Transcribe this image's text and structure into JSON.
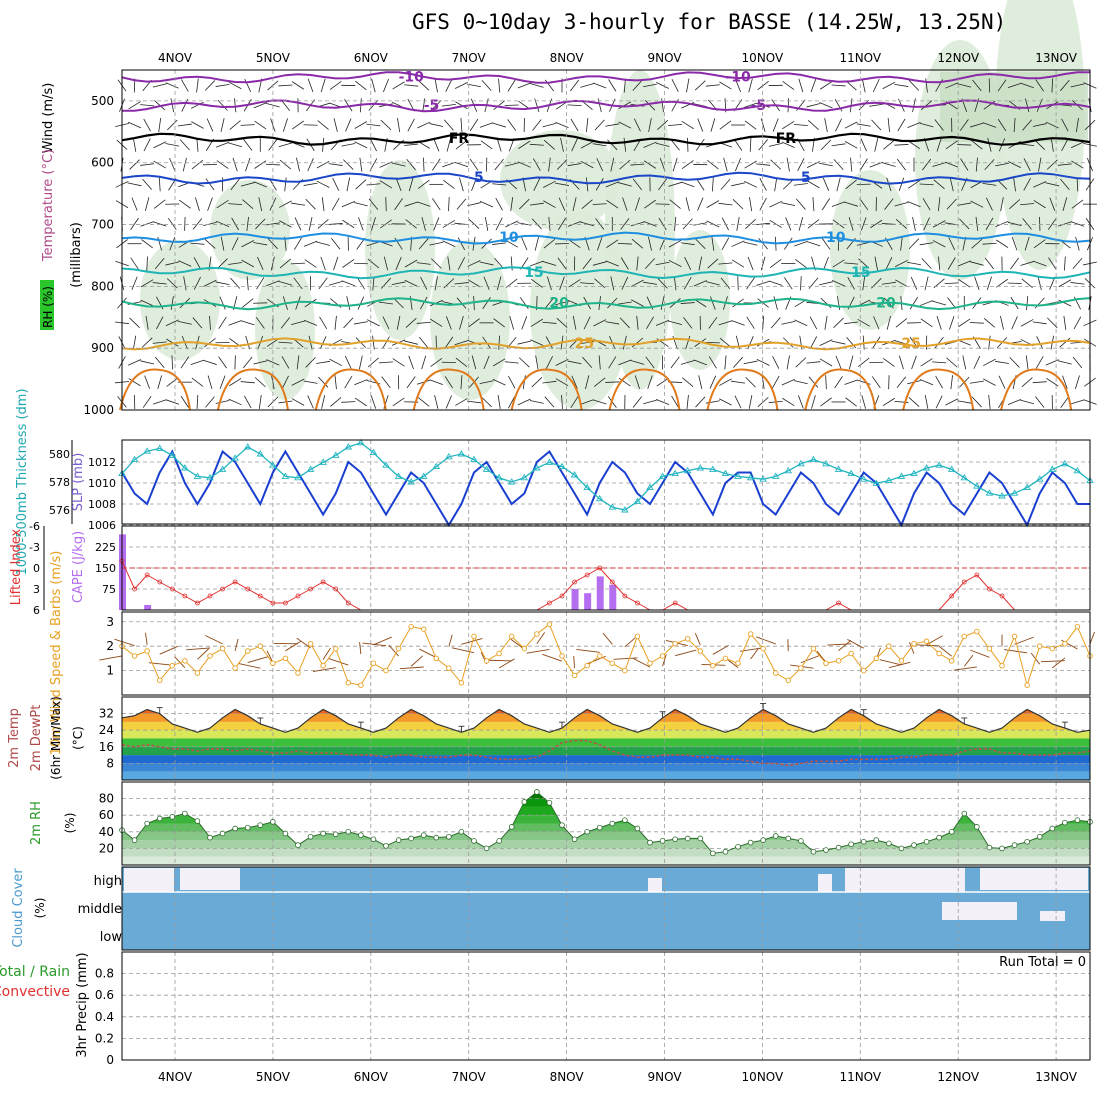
{
  "title": "GFS 0~10day 3-hourly for BASSE (14.25W, 13.25N)",
  "dates": [
    "4NOV",
    "5NOV",
    "6NOV",
    "7NOV",
    "8NOV",
    "9NOV",
    "10NOV",
    "11NOV",
    "12NOV",
    "13NOV"
  ],
  "colors": {
    "frame": "#000000",
    "grid": "#9a9a9a",
    "rh_fill": "#dcebd8",
    "slp": "#1a3fd0",
    "thickness": "#22b5c0",
    "lifted": "#e03030",
    "cape": "#b56ef0",
    "wind": "#e8a020",
    "barb": "#8b4513",
    "rh2m": "#38c038",
    "cloud": "#6aaad6",
    "cloud_clear": "#f3f0f8"
  },
  "chart_data": [
    {
      "panel": "upper-air",
      "type": "line",
      "ylabel_parts": [
        "Wind (m/s)",
        "Temperature (°C)",
        "RH (%)",
        "(millibars)"
      ],
      "y_ticks": [
        500,
        600,
        700,
        800,
        900,
        1000
      ],
      "ylim": [
        1000,
        450
      ],
      "inverted": true,
      "isotherms": [
        {
          "label": "-10",
          "color": "#8a2aa8",
          "pressure": 462
        },
        {
          "label": "-5",
          "color": "#8a2aa8",
          "pressure": 508
        },
        {
          "label": "FR",
          "color": "#000000",
          "pressure": 562
        },
        {
          "label": "5",
          "color": "#1a46c8",
          "pressure": 625
        },
        {
          "label": "10",
          "color": "#1e8ee0",
          "pressure": 722
        },
        {
          "label": "15",
          "color": "#1fb5b5",
          "pressure": 778
        },
        {
          "label": "20",
          "color": "#1eb38a",
          "pressure": 828
        },
        {
          "label": "25",
          "color": "#e2a12a",
          "pressure": 893
        }
      ]
    },
    {
      "panel": "thickness-slp",
      "type": "line",
      "ylabel_left": "1000-500mb Thickness (dm)",
      "ylabel_right": "SLP (mb)",
      "thickness_ticks": [
        "576",
        "578",
        "580"
      ],
      "slp_ticks": [
        "1006",
        "1008",
        "1010",
        "1012"
      ],
      "slp_range": [
        1006,
        1014
      ],
      "thickness_range": [
        575,
        581
      ],
      "slp": [
        1011,
        1009,
        1008,
        1011,
        1013,
        1010,
        1008,
        1010,
        1013,
        1012,
        1010,
        1008,
        1011,
        1013,
        1011,
        1009,
        1007,
        1009,
        1012,
        1011,
        1009,
        1007,
        1009,
        1011,
        1010,
        1008,
        1006,
        1008,
        1011,
        1012,
        1010,
        1008,
        1009,
        1012,
        1013,
        1011,
        1009,
        1007,
        1010,
        1012,
        1011,
        1009,
        1008,
        1010,
        1012,
        1011,
        1009,
        1007,
        1010,
        1011,
        1011,
        1008,
        1007,
        1009,
        1011,
        1010,
        1008,
        1007,
        1009,
        1011,
        1010,
        1008,
        1006,
        1009,
        1011,
        1010,
        1008,
        1007,
        1009,
        1011,
        1010,
        1008,
        1006,
        1009,
        1011,
        1010,
        1008,
        1008
      ],
      "thickness": [
        578.6,
        579.6,
        580.2,
        580.4,
        579.9,
        579.0,
        578.4,
        578.3,
        578.9,
        579.7,
        580.5,
        580.0,
        579.2,
        578.4,
        578.3,
        578.9,
        579.4,
        579.9,
        580.5,
        580.8,
        580.1,
        579.2,
        578.4,
        578.0,
        578.4,
        579.1,
        579.8,
        580.0,
        579.6,
        578.9,
        578.3,
        578.0,
        578.3,
        579.0,
        579.4,
        579.1,
        578.5,
        577.6,
        576.8,
        576.2,
        576.0,
        576.6,
        577.6,
        578.4,
        578.6,
        578.8,
        579.0,
        578.9,
        578.6,
        578.4,
        578.3,
        578.2,
        578.4,
        578.8,
        579.3,
        579.6,
        579.3,
        578.9,
        578.6,
        578.2,
        577.9,
        578.1,
        578.4,
        578.6,
        579.0,
        579.2,
        578.9,
        578.3,
        577.7,
        577.2,
        577.0,
        577.2,
        577.6,
        578.2,
        578.9,
        579.3,
        578.8,
        578.1
      ]
    },
    {
      "panel": "stability",
      "type": "bar",
      "ylabel_left": "Lifted Index",
      "ylabel_right": "CAPE (J/kg)",
      "li_ticks": [
        "-6",
        "-3",
        "0",
        "3",
        "6"
      ],
      "cape_ticks": [
        "225",
        "150",
        "75"
      ],
      "cape_range": [
        0,
        300
      ],
      "li_range": [
        -6,
        6
      ],
      "cape": [
        {
          "i": 0,
          "v": 270
        },
        {
          "i": 2,
          "v": 18
        },
        {
          "i": 36,
          "v": 75
        },
        {
          "i": 37,
          "v": 60
        },
        {
          "i": 38,
          "v": 120
        },
        {
          "i": 39,
          "v": 90
        }
      ],
      "lifted_index": [
        -1,
        3,
        1,
        2,
        3,
        4,
        5,
        4,
        3,
        2,
        3,
        4,
        5,
        5,
        4,
        3,
        2,
        3,
        5,
        6,
        6,
        6,
        6,
        6,
        6,
        6,
        6,
        6,
        6,
        6,
        6,
        6,
        6,
        6,
        5,
        4,
        2,
        1,
        0,
        2,
        4,
        5,
        6,
        6,
        5,
        6,
        6,
        6,
        6,
        6,
        6,
        6,
        6,
        6,
        6,
        6,
        6,
        5,
        6,
        6,
        6,
        6,
        6,
        6,
        6,
        6,
        4,
        2,
        1,
        3,
        4,
        6,
        6,
        6,
        6,
        6,
        6,
        6
      ]
    },
    {
      "panel": "wind10m",
      "type": "line",
      "ylabel": "10m Wind Speed & Barbs (m/s)",
      "y_ticks": [
        "1",
        "2",
        "3"
      ],
      "ylim": [
        0,
        3.4
      ],
      "values": [
        2.0,
        1.6,
        1.8,
        0.6,
        1.2,
        1.4,
        0.9,
        1.6,
        1.9,
        1.1,
        1.8,
        2.0,
        1.3,
        1.5,
        0.9,
        2.1,
        1.2,
        1.9,
        0.5,
        0.4,
        1.3,
        1.0,
        1.9,
        2.8,
        2.7,
        1.5,
        1.1,
        0.5,
        2.4,
        1.4,
        1.7,
        2.4,
        1.9,
        2.5,
        2.9,
        1.6,
        0.8,
        1.2,
        1.6,
        1.3,
        1.0,
        2.4,
        1.3,
        1.6,
        2.1,
        2.3,
        1.8,
        1.2,
        1.5,
        1.3,
        2.5,
        1.9,
        0.9,
        0.6,
        1.1,
        1.9,
        1.3,
        1.4,
        1.7,
        1.0,
        1.5,
        2.0,
        1.4,
        2.1,
        2.2,
        1.7,
        1.4,
        2.4,
        2.6,
        1.9,
        1.2,
        2.4,
        0.4,
        2.0,
        1.9,
        2.1,
        2.8,
        1.6
      ]
    },
    {
      "panel": "temp2m",
      "type": "area",
      "ylabel": "2m Temp 2m DewPt (6hr Min/Max) (°C)",
      "y_ticks": [
        "8",
        "16",
        "24",
        "32"
      ],
      "ylim": [
        0,
        40
      ],
      "temperature": [
        30,
        31,
        34,
        32,
        27,
        25,
        23,
        25,
        30,
        34,
        31,
        27,
        25,
        23,
        25,
        30,
        34,
        31,
        27,
        25,
        23,
        25,
        30,
        34,
        31,
        27,
        25,
        23,
        25,
        30,
        34,
        31,
        27,
        25,
        23,
        25,
        30,
        34,
        31,
        27,
        25,
        23,
        25,
        30,
        34,
        31,
        27,
        25,
        23,
        25,
        30,
        34,
        31,
        27,
        25,
        23,
        25,
        30,
        34,
        31,
        27,
        25,
        23,
        25,
        30,
        34,
        31,
        27,
        25,
        23,
        25,
        30,
        34,
        31,
        27,
        25,
        23,
        24
      ],
      "dewpoint": [
        17,
        16,
        17,
        16,
        15,
        15,
        14,
        15,
        15,
        14,
        15,
        14,
        13,
        13,
        14,
        13,
        13,
        13,
        12,
        12,
        12,
        11,
        12,
        12,
        11,
        11,
        11,
        12,
        12,
        11,
        10,
        10,
        10,
        11,
        14,
        18,
        19,
        19,
        17,
        14,
        12,
        11,
        11,
        12,
        12,
        12,
        11,
        11,
        10,
        10,
        9,
        8,
        8,
        7,
        8,
        9,
        9,
        9,
        10,
        10,
        10,
        10,
        11,
        11,
        12,
        12,
        12,
        14,
        15,
        15,
        13,
        13,
        12,
        12,
        12,
        13,
        13,
        14
      ]
    },
    {
      "panel": "rh2m",
      "type": "area",
      "ylabel": "2m RH (%)",
      "y_ticks": [
        "20",
        "40",
        "60",
        "80"
      ],
      "ylim": [
        0,
        100
      ],
      "values": [
        42,
        30,
        50,
        56,
        58,
        62,
        53,
        33,
        38,
        44,
        45,
        48,
        52,
        38,
        24,
        34,
        38,
        37,
        40,
        36,
        31,
        23,
        30,
        32,
        36,
        33,
        34,
        40,
        29,
        20,
        29,
        46,
        76,
        88,
        75,
        48,
        31,
        40,
        45,
        50,
        54,
        44,
        27,
        29,
        31,
        32,
        32,
        14,
        16,
        22,
        27,
        30,
        35,
        32,
        29,
        16,
        18,
        21,
        25,
        28,
        30,
        26,
        20,
        24,
        28,
        33,
        40,
        62,
        46,
        21,
        20,
        24,
        28,
        34,
        44,
        51,
        54,
        52
      ]
    },
    {
      "panel": "cloud",
      "type": "heatmap",
      "ylabel": "Cloud Cover (%)",
      "levels": [
        "high",
        "middle",
        "low"
      ]
    },
    {
      "panel": "precip",
      "type": "bar",
      "ylabel": "3hr Precip (mm)",
      "legend": [
        "Total / Rain",
        "Convective"
      ],
      "y_ticks": [
        "0",
        "0.2",
        "0.4",
        "0.6",
        "0.8"
      ],
      "ylim": [
        0,
        1
      ],
      "run_total": "Run Total = 0",
      "values": []
    }
  ]
}
